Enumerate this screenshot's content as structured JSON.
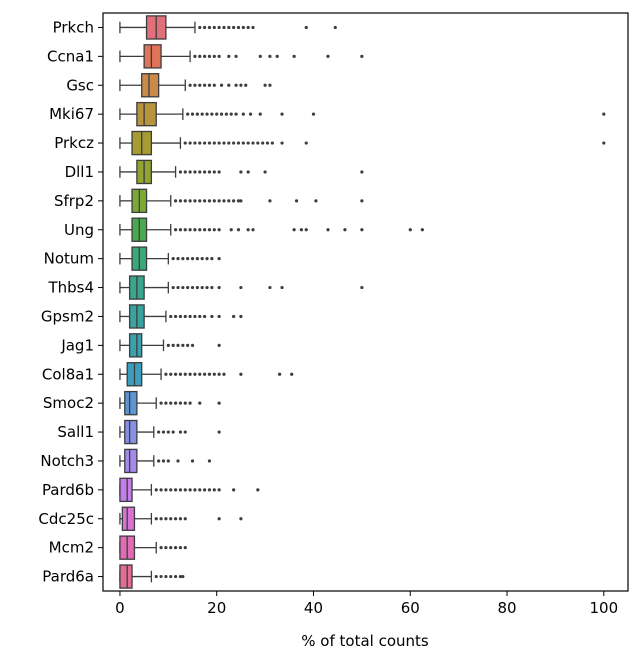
{
  "chart_data": {
    "type": "boxplot",
    "orientation": "horizontal",
    "title": "",
    "xlabel": "% of total counts",
    "ylabel": "",
    "xlim": [
      -3.5,
      105
    ],
    "xticks": [
      0,
      20,
      40,
      60,
      80,
      100
    ],
    "legend": "none",
    "grid": false,
    "categories": [
      "Prkch",
      "Ccna1",
      "Gsc",
      "Mki67",
      "Prkcz",
      "Dll1",
      "Sfrp2",
      "Ung",
      "Notum",
      "Thbs4",
      "Gpsm2",
      "Jag1",
      "Col8a1",
      "Smoc2",
      "Sall1",
      "Notch3",
      "Pard6b",
      "Cdc25c",
      "Mcm2",
      "Pard6a"
    ],
    "colors": [
      "#e1707b",
      "#e17458",
      "#c98a4a",
      "#b7943d",
      "#a69c32",
      "#93a230",
      "#7aa938",
      "#4aa94f",
      "#3aa879",
      "#38a68f",
      "#39a39f",
      "#3ba1ad",
      "#3d9dbd",
      "#5b96d3",
      "#8591e3",
      "#a58aeb",
      "#c37ee9",
      "#d872d4",
      "#e06cb5",
      "#e16d95"
    ],
    "boxes": [
      {
        "whisker_low": 0,
        "q1": 5.5,
        "median": 7.5,
        "q3": 9.5,
        "whisker_high": 15.5,
        "outliers": [
          16.5,
          17.5,
          18.5,
          19.5,
          20.5,
          21.5,
          22.5,
          23.5,
          24.5,
          25.5,
          26.5,
          27.5,
          38.5,
          44.5
        ]
      },
      {
        "whisker_low": 0,
        "q1": 5,
        "median": 6.5,
        "q3": 8.5,
        "whisker_high": 14.5,
        "outliers": [
          15.5,
          16.5,
          17.5,
          18.5,
          19.5,
          20.5,
          22.5,
          24,
          29,
          31,
          32.5,
          36,
          43,
          50
        ]
      },
      {
        "whisker_low": 0,
        "q1": 4.5,
        "median": 6,
        "q3": 8,
        "whisker_high": 13.5,
        "outliers": [
          14.5,
          15.5,
          16.5,
          17.5,
          18.5,
          19.5,
          21,
          22.5,
          24,
          25,
          26,
          30,
          31
        ]
      },
      {
        "whisker_low": 0,
        "q1": 3.5,
        "median": 5,
        "q3": 7.5,
        "whisker_high": 13,
        "outliers": [
          14,
          15,
          16,
          17,
          18,
          19,
          20,
          21,
          22,
          23,
          24,
          25.5,
          27,
          29,
          33.5,
          40,
          100
        ]
      },
      {
        "whisker_low": 0,
        "q1": 2.5,
        "median": 4.5,
        "q3": 6.5,
        "whisker_high": 12.5,
        "outliers": [
          13.5,
          14.5,
          15.5,
          16.5,
          17.5,
          18.5,
          19.5,
          20.5,
          21.5,
          22.5,
          23.5,
          24.5,
          25.5,
          26.5,
          27.5,
          28.5,
          29.5,
          30.5,
          31.5,
          33.5,
          38.5,
          100
        ]
      },
      {
        "whisker_low": 0,
        "q1": 3.5,
        "median": 5,
        "q3": 6.5,
        "whisker_high": 11.5,
        "outliers": [
          12.5,
          13.5,
          14.5,
          15.5,
          16.5,
          17.5,
          18.5,
          19.5,
          20.5,
          25,
          26.5,
          30,
          50
        ]
      },
      {
        "whisker_low": 0,
        "q1": 2.5,
        "median": 4,
        "q3": 5.5,
        "whisker_high": 10.5,
        "outliers": [
          11.5,
          12.5,
          13.5,
          14.5,
          15.5,
          16.5,
          17.5,
          18.5,
          19.5,
          20.5,
          21.5,
          22.5,
          23.5,
          24.5,
          25,
          31,
          36.5,
          40.5,
          50
        ]
      },
      {
        "whisker_low": 0,
        "q1": 2.5,
        "median": 4,
        "q3": 5.5,
        "whisker_high": 10.5,
        "outliers": [
          11.5,
          12.5,
          13.5,
          14.5,
          15.5,
          16.5,
          17.5,
          18.5,
          19.5,
          20.5,
          23,
          24.5,
          26.5,
          27.5,
          36,
          37.5,
          38.5,
          43,
          46.5,
          50,
          60,
          62.5
        ]
      },
      {
        "whisker_low": 0,
        "q1": 2.5,
        "median": 4,
        "q3": 5.5,
        "whisker_high": 10,
        "outliers": [
          11,
          12,
          13,
          14,
          15,
          16,
          17,
          18,
          19,
          20.5
        ]
      },
      {
        "whisker_low": 0,
        "q1": 2,
        "median": 3.5,
        "q3": 5,
        "whisker_high": 10,
        "outliers": [
          11,
          12,
          13,
          14,
          15,
          16,
          17,
          18,
          19,
          20.5,
          25,
          31,
          33.5,
          50
        ]
      },
      {
        "whisker_low": 0,
        "q1": 2,
        "median": 3.5,
        "q3": 5,
        "whisker_high": 9.5,
        "outliers": [
          10.5,
          11.5,
          12.5,
          13.5,
          14.5,
          15.5,
          16.5,
          17.5,
          19,
          20.5,
          23.5,
          25
        ]
      },
      {
        "whisker_low": 0,
        "q1": 2,
        "median": 3.5,
        "q3": 4.5,
        "whisker_high": 9,
        "outliers": [
          10,
          11,
          12,
          13,
          14,
          15,
          20.5
        ]
      },
      {
        "whisker_low": 0,
        "q1": 1.5,
        "median": 3,
        "q3": 4.5,
        "whisker_high": 8.5,
        "outliers": [
          9.5,
          10.5,
          11.5,
          12.5,
          13.5,
          14.5,
          15.5,
          16.5,
          17.5,
          18.5,
          19.5,
          20.5,
          21.5,
          25,
          33,
          35.5
        ]
      },
      {
        "whisker_low": 0,
        "q1": 1,
        "median": 2,
        "q3": 3.5,
        "whisker_high": 7.5,
        "outliers": [
          8.5,
          9.5,
          10.5,
          11.5,
          12.5,
          13.5,
          14.5,
          16.5,
          20.5
        ]
      },
      {
        "whisker_low": 0,
        "q1": 1,
        "median": 2,
        "q3": 3.5,
        "whisker_high": 7,
        "outliers": [
          8,
          9,
          10,
          11,
          12.5,
          13.5,
          20.5
        ]
      },
      {
        "whisker_low": 0,
        "q1": 1,
        "median": 2,
        "q3": 3.5,
        "whisker_high": 7,
        "outliers": [
          8,
          9,
          10,
          12,
          15,
          18.5
        ]
      },
      {
        "whisker_low": 0,
        "q1": 0,
        "median": 1.5,
        "q3": 2.5,
        "whisker_high": 6.5,
        "outliers": [
          7.5,
          8.5,
          9.5,
          10.5,
          11.5,
          12.5,
          13.5,
          14.5,
          15.5,
          16.5,
          17.5,
          18.5,
          19.5,
          20.5,
          23.5,
          28.5
        ]
      },
      {
        "whisker_low": 0,
        "q1": 0.5,
        "median": 1.5,
        "q3": 3,
        "whisker_high": 6.5,
        "outliers": [
          7.5,
          8.5,
          9.5,
          10.5,
          11.5,
          12.5,
          13.5,
          20.5,
          25
        ]
      },
      {
        "whisker_low": 0,
        "q1": 0,
        "median": 1.5,
        "q3": 3,
        "whisker_high": 7.5,
        "outliers": [
          8.5,
          9.5,
          10.5,
          11.5,
          12.5,
          13.5
        ]
      },
      {
        "whisker_low": 0,
        "q1": 0,
        "median": 1.5,
        "q3": 2.5,
        "whisker_high": 6.5,
        "outliers": [
          7.5,
          8.5,
          9.5,
          10.5,
          11.5,
          12.5,
          13
        ]
      }
    ]
  }
}
